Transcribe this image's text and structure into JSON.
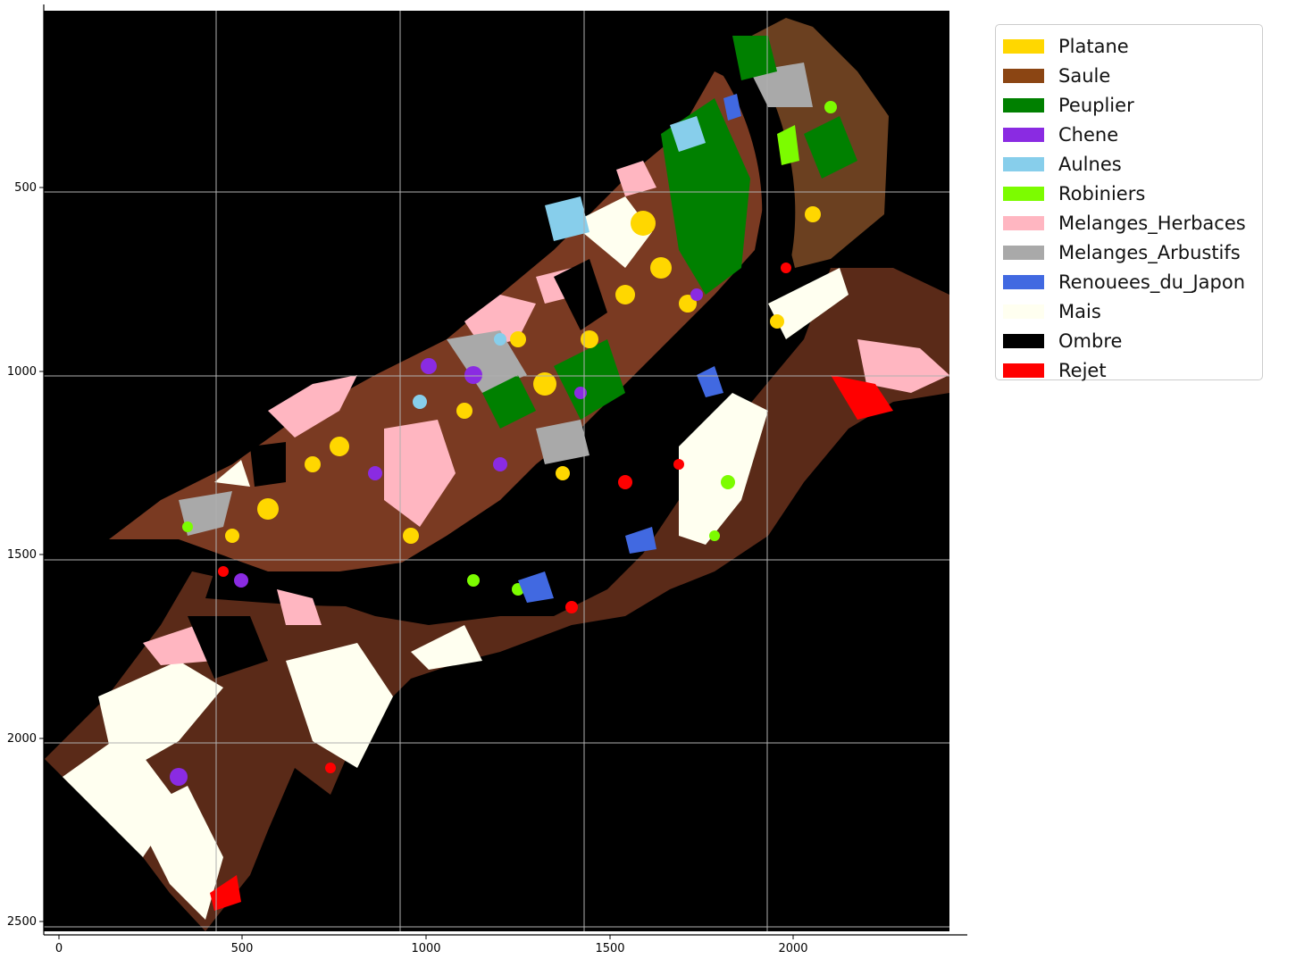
{
  "x_ticks": [
    "0",
    "500",
    "1000",
    "1500",
    "2000"
  ],
  "y_ticks": [
    "500",
    "1000",
    "1500",
    "2000",
    "2500"
  ],
  "legend": [
    {
      "label": "Platane",
      "color": "#FFD700"
    },
    {
      "label": "Saule",
      "color": "#8B4513"
    },
    {
      "label": "Peuplier",
      "color": "#008000"
    },
    {
      "label": "Chene",
      "color": "#8A2BE2"
    },
    {
      "label": "Aulnes",
      "color": "#87CEEB"
    },
    {
      "label": "Robiniers",
      "color": "#7CFC00"
    },
    {
      "label": "Melanges_Herbaces",
      "color": "#FFB6C1"
    },
    {
      "label": "Melanges_Arbustifs",
      "color": "#A9A9A9"
    },
    {
      "label": "Renouees_du_Japon",
      "color": "#4169E1"
    },
    {
      "label": "Mais",
      "color": "#FFFFF0"
    },
    {
      "label": "Ombre",
      "color": "#000000"
    },
    {
      "label": "Rejet",
      "color": "#FF0000"
    }
  ],
  "colors": {
    "background": "#000000",
    "grid": "#b0b0b0"
  }
}
